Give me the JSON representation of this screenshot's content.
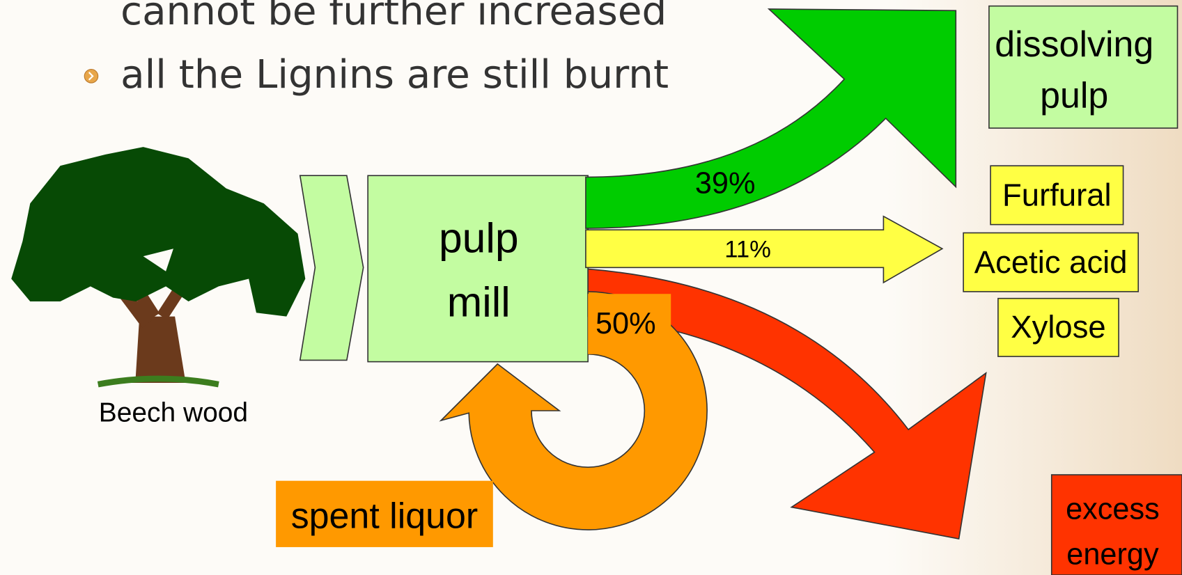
{
  "bullets": [
    "cannot be further increased",
    "all the Lignins are still burnt"
  ],
  "source": "Beech wood",
  "mill": [
    "pulp",
    "mill"
  ],
  "flows": [
    {
      "label": "39%"
    },
    {
      "label": "11%"
    },
    {
      "label": "50%"
    }
  ],
  "products": {
    "pulp": [
      "dissolving",
      "pulp"
    ],
    "chemicals": [
      "Furfural",
      "Acetic acid",
      "Xylose"
    ],
    "recycle": "spent liquor",
    "energy": [
      "excess",
      "energy"
    ]
  }
}
